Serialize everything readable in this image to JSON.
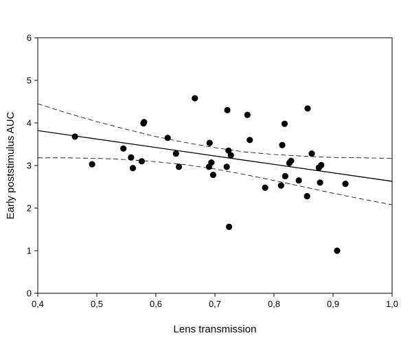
{
  "chart_data": {
    "type": "scatter",
    "title": "",
    "xlabel": "Lens transmission",
    "ylabel": "Early poststimulus AUC",
    "xlim": [
      0.4,
      1.0
    ],
    "ylim": [
      0,
      6
    ],
    "x_ticks": [
      "0,4",
      "0,5",
      "0,6",
      "0,7",
      "0,8",
      "0,9",
      "1,0"
    ],
    "y_ticks": [
      "0",
      "1",
      "2",
      "3",
      "4",
      "5",
      "6"
    ],
    "grid": false,
    "legend": "none",
    "points": [
      {
        "x": 0.463,
        "y": 3.68
      },
      {
        "x": 0.492,
        "y": 3.03
      },
      {
        "x": 0.545,
        "y": 3.4
      },
      {
        "x": 0.558,
        "y": 3.19
      },
      {
        "x": 0.561,
        "y": 2.94
      },
      {
        "x": 0.576,
        "y": 3.1
      },
      {
        "x": 0.579,
        "y": 3.99
      },
      {
        "x": 0.58,
        "y": 4.02
      },
      {
        "x": 0.62,
        "y": 3.65
      },
      {
        "x": 0.634,
        "y": 3.28
      },
      {
        "x": 0.639,
        "y": 2.97
      },
      {
        "x": 0.666,
        "y": 4.58
      },
      {
        "x": 0.69,
        "y": 2.97
      },
      {
        "x": 0.691,
        "y": 3.53
      },
      {
        "x": 0.694,
        "y": 3.07
      },
      {
        "x": 0.697,
        "y": 2.78
      },
      {
        "x": 0.72,
        "y": 2.97
      },
      {
        "x": 0.721,
        "y": 4.3
      },
      {
        "x": 0.723,
        "y": 3.35
      },
      {
        "x": 0.724,
        "y": 1.56
      },
      {
        "x": 0.727,
        "y": 3.24
      },
      {
        "x": 0.755,
        "y": 4.19
      },
      {
        "x": 0.759,
        "y": 3.6
      },
      {
        "x": 0.785,
        "y": 2.48
      },
      {
        "x": 0.812,
        "y": 2.53
      },
      {
        "x": 0.814,
        "y": 3.48
      },
      {
        "x": 0.818,
        "y": 3.98
      },
      {
        "x": 0.819,
        "y": 2.75
      },
      {
        "x": 0.826,
        "y": 3.06
      },
      {
        "x": 0.829,
        "y": 3.11
      },
      {
        "x": 0.842,
        "y": 2.65
      },
      {
        "x": 0.856,
        "y": 2.28
      },
      {
        "x": 0.857,
        "y": 4.34
      },
      {
        "x": 0.864,
        "y": 3.28
      },
      {
        "x": 0.876,
        "y": 2.95
      },
      {
        "x": 0.878,
        "y": 2.6
      },
      {
        "x": 0.88,
        "y": 3.01
      },
      {
        "x": 0.907,
        "y": 1.0
      },
      {
        "x": 0.921,
        "y": 2.57
      }
    ],
    "regression_line": {
      "x": [
        0.4,
        1.0
      ],
      "y": [
        3.82,
        2.63
      ]
    },
    "confidence_band_upper": {
      "x": [
        0.4,
        0.45,
        0.5,
        0.55,
        0.6,
        0.65,
        0.7,
        0.75,
        0.8,
        0.85,
        0.9,
        0.95,
        1.0
      ],
      "y": [
        4.45,
        4.23,
        4.03,
        3.85,
        3.68,
        3.54,
        3.42,
        3.32,
        3.26,
        3.22,
        3.19,
        3.18,
        3.17
      ]
    },
    "confidence_band_lower": {
      "x": [
        0.4,
        0.45,
        0.5,
        0.55,
        0.6,
        0.65,
        0.7,
        0.75,
        0.8,
        0.85,
        0.9,
        0.95,
        1.0
      ],
      "y": [
        3.18,
        3.18,
        3.17,
        3.14,
        3.09,
        3.02,
        2.92,
        2.79,
        2.65,
        2.5,
        2.35,
        2.21,
        2.08
      ]
    }
  }
}
